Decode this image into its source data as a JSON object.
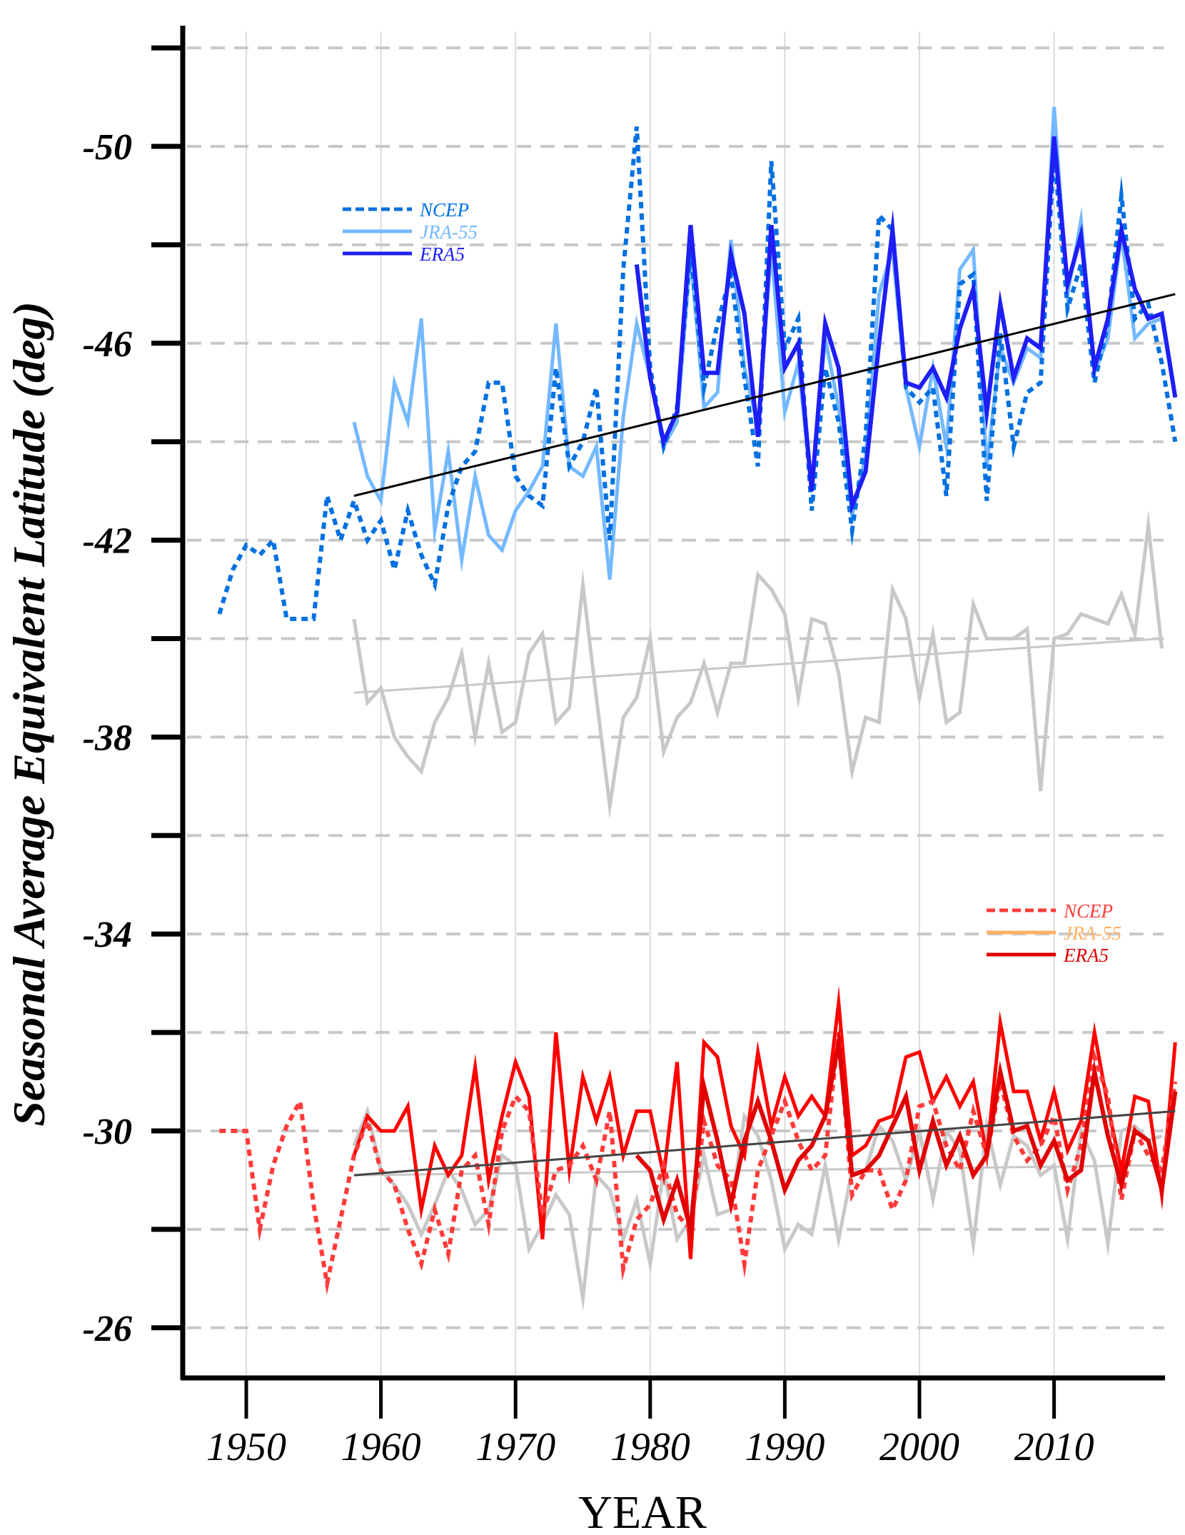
{
  "chart_data": {
    "type": "line",
    "title": "",
    "xlabel": "YEAR",
    "ylabel": "Seasonal Average Equivalent Latitude (deg)",
    "xlim": [
      1945,
      2019
    ],
    "ylim": [
      -52.4,
      -24.8
    ],
    "y_inverted": true,
    "grid": {
      "horizontal": "dashed",
      "vertical": "solid-light"
    },
    "xticks": [
      1950,
      1960,
      1970,
      1980,
      1990,
      2000,
      2010
    ],
    "xtick_labels": [
      "1950",
      "1960",
      "1970",
      "1980",
      "1990",
      "2000",
      "2010"
    ],
    "yticks": [
      -52,
      -50,
      -48,
      -46,
      -44,
      -42,
      -40,
      -38,
      -36,
      -34,
      -32,
      -30,
      -28,
      -26
    ],
    "ytick_labels": [
      "",
      "-50",
      "",
      "-46",
      "",
      "-42",
      "",
      "-38",
      "",
      "-34",
      "",
      "-30",
      "",
      "-26"
    ],
    "legends": [
      {
        "placement": "upper-left",
        "entries": [
          {
            "label": "NCEP",
            "color": "#0070E0",
            "style": "dotted"
          },
          {
            "label": "JRA-55",
            "color": "#74B9FF",
            "style": "solid"
          },
          {
            "label": "ERA5",
            "color": "#1E1EF5",
            "style": "solid"
          }
        ]
      },
      {
        "placement": "lower-right",
        "entries": [
          {
            "label": "NCEP",
            "color": "#FF3B3B",
            "style": "dotted"
          },
          {
            "label": "JRA-55",
            "color": "#FFB066",
            "style": "solid"
          },
          {
            "label": "ERA5",
            "color": "#E00000",
            "style": "solid"
          }
        ]
      }
    ],
    "series": [
      {
        "name": "NCEP (upper)",
        "color": "#0070E0",
        "style": "dotted",
        "start_year": 1948,
        "values": [
          -40.5,
          -41.4,
          -41.9,
          -41.7,
          -42.0,
          -40.4,
          -40.4,
          -40.4,
          -42.9,
          -42.0,
          -42.8,
          -42.0,
          -42.4,
          -41.4,
          -42.6,
          -41.7,
          -41.1,
          -42.7,
          -43.5,
          -43.8,
          -45.2,
          -45.2,
          -43.3,
          -42.9,
          -42.7,
          -45.5,
          -43.5,
          -44.0,
          -45.1,
          -42.0,
          -47.5,
          -50.4,
          -45.5,
          -43.9,
          -44.7,
          -47.9,
          -45.1,
          -46.4,
          -47.4,
          -45.3,
          -43.5,
          -49.7,
          -45.9,
          -46.5,
          -42.6,
          -45.5,
          -44.4,
          -42.2,
          -44.1,
          -48.6,
          -48.3,
          -45.1,
          -44.8,
          -45.1,
          -42.9,
          -47.2,
          -47.4,
          -42.8,
          -46.2,
          -43.9,
          -45.0,
          -45.2,
          -49.9,
          -46.7,
          -47.6,
          -45.2,
          -46.4,
          -49.0,
          -46.5,
          -46.8,
          -45.6,
          -44.0
        ]
      },
      {
        "name": "JRA-55 (upper)",
        "color": "#74B9FF",
        "style": "solid",
        "start_year": 1958,
        "values": [
          -44.4,
          -43.3,
          -42.8,
          -45.2,
          -44.4,
          -46.5,
          -42.2,
          -43.8,
          -41.6,
          -43.3,
          -42.1,
          -41.8,
          -42.6,
          -43.0,
          -43.5,
          -46.4,
          -43.5,
          -43.3,
          -43.9,
          -41.2,
          -44.5,
          -46.4,
          -45.3,
          -43.9,
          -44.4,
          -47.8,
          -44.7,
          -45.0,
          -48.1,
          -45.5,
          -44.3,
          -47.9,
          -44.6,
          -45.6,
          -43.0,
          -46.1,
          -44.7,
          -42.5,
          -43.7,
          -47.0,
          -47.9,
          -45.1,
          -43.9,
          -45.5,
          -43.9,
          -47.5,
          -47.9,
          -43.5,
          -45.9,
          -45.2,
          -45.9,
          -45.7,
          -50.8,
          -47.0,
          -48.5,
          -45.4,
          -46.1,
          -48.2,
          -46.1,
          -46.4,
          -46.5,
          -44.9
        ]
      },
      {
        "name": "ERA5 (upper)",
        "color": "#1E1EF5",
        "style": "solid",
        "start_year": 1979,
        "values": [
          -47.6,
          -45.3,
          -44.0,
          -44.6,
          -48.4,
          -45.4,
          -45.4,
          -47.8,
          -46.6,
          -44.1,
          -48.4,
          -45.5,
          -46.0,
          -43.0,
          -46.4,
          -45.5,
          -42.7,
          -43.4,
          -46.0,
          -48.3,
          -45.2,
          -45.1,
          -45.5,
          -44.9,
          -46.3,
          -47.1,
          -44.6,
          -46.8,
          -45.3,
          -46.1,
          -45.9,
          -50.2,
          -47.2,
          -48.2,
          -45.5,
          -46.5,
          -48.3,
          -47.1,
          -46.5,
          -46.6,
          -44.9
        ]
      },
      {
        "name": "Upper trend",
        "color": "#000000",
        "style": "trend",
        "x": [
          1958,
          2019
        ],
        "values": [
          -42.9,
          -47.0
        ]
      },
      {
        "name": "Middle gray series",
        "color": "#C8C8C8",
        "style": "solid",
        "start_year": 1958,
        "values": [
          -40.4,
          -38.7,
          -39.0,
          -38.0,
          -37.6,
          -37.3,
          -38.3,
          -38.8,
          -39.7,
          -38.0,
          -39.5,
          -38.1,
          -38.3,
          -39.7,
          -40.1,
          -38.3,
          -38.6,
          -41.1,
          -38.8,
          -36.6,
          -38.4,
          -38.8,
          -40.0,
          -37.7,
          -38.4,
          -38.7,
          -39.5,
          -38.5,
          -39.5,
          -39.5,
          -41.3,
          -41.0,
          -40.5,
          -38.8,
          -40.4,
          -40.3,
          -39.3,
          -37.3,
          -38.4,
          -38.3,
          -41.0,
          -40.4,
          -38.8,
          -40.1,
          -38.3,
          -38.5,
          -40.7,
          -40.0,
          -40.0,
          -40.0,
          -40.2,
          -36.9,
          -40.0,
          -40.1,
          -40.5,
          -40.4,
          -40.3,
          -40.9,
          -40.1,
          -42.3,
          -39.8
        ]
      },
      {
        "name": "Middle gray trend",
        "color": "#C8C8C8",
        "style": "trend",
        "x": [
          1958,
          2018
        ],
        "values": [
          -38.9,
          -40.0
        ]
      },
      {
        "name": "NCEP (lower)",
        "color": "#FF3B3B",
        "style": "dotted",
        "start_year": 1948,
        "values": [
          -30.0,
          -30.0,
          -30.0,
          -28.0,
          -29.3,
          -30.1,
          -30.6,
          -28.5,
          -26.9,
          -28.2,
          -29.5,
          -30.2,
          -29.2,
          -28.9,
          -28.0,
          -27.3,
          -28.4,
          -27.5,
          -29.2,
          -29.5,
          -28.1,
          -30.0,
          -30.7,
          -30.4,
          -28.3,
          -29.2,
          -29.3,
          -29.7,
          -29.0,
          -30.4,
          -27.2,
          -28.2,
          -28.5,
          -29.3,
          -28.3,
          -28.0,
          -30.2,
          -29.3,
          -29.0,
          -27.3,
          -29.2,
          -29.9,
          -30.6,
          -29.8,
          -29.2,
          -29.5,
          -32.0,
          -28.7,
          -29.2,
          -29.2,
          -28.4,
          -29.0,
          -30.5,
          -30.6,
          -29.7,
          -29.2,
          -30.4,
          -29.5,
          -31.0,
          -29.9,
          -29.4,
          -29.7,
          -30.3,
          -28.8,
          -29.7,
          -31.5,
          -30.7,
          -28.6,
          -30.0,
          -29.5,
          -29.2,
          -31.0
        ]
      },
      {
        "name": "JRA-55 (lower)",
        "color": "#FF0000",
        "style": "solid",
        "start_year": 1958,
        "values": [
          -29.5,
          -30.3,
          -30.0,
          -30.0,
          -30.5,
          -28.4,
          -29.7,
          -29.1,
          -29.5,
          -31.3,
          -29.0,
          -30.3,
          -31.4,
          -30.7,
          -27.8,
          -32.0,
          -29.2,
          -31.1,
          -30.2,
          -31.1,
          -29.5,
          -30.4,
          -30.4,
          -29.1,
          -31.4,
          -27.4,
          -31.8,
          -31.5,
          -30.1,
          -29.5,
          -31.6,
          -30.1,
          -31.1,
          -30.3,
          -30.7,
          -30.3,
          -32.6,
          -29.5,
          -29.7,
          -30.2,
          -30.3,
          -31.5,
          -31.6,
          -30.6,
          -31.1,
          -30.5,
          -31.0,
          -29.5,
          -32.2,
          -30.8,
          -30.8,
          -29.8,
          -30.8,
          -29.6,
          -30.2,
          -32.0,
          -30.5,
          -29.2,
          -30.7,
          -30.6,
          -28.7,
          -31.8
        ]
      },
      {
        "name": "ERA5 (lower)",
        "color": "#E00000",
        "style": "solid",
        "start_year": 1979,
        "values": [
          -29.5,
          -29.2,
          -28.2,
          -29.0,
          -28.0,
          -30.9,
          -29.8,
          -28.5,
          -29.8,
          -30.6,
          -29.8,
          -28.8,
          -29.4,
          -29.7,
          -30.3,
          -31.8,
          -29.1,
          -29.2,
          -29.5,
          -30.1,
          -30.7,
          -29.2,
          -30.2,
          -29.3,
          -29.9,
          -29.1,
          -29.5,
          -31.2,
          -30.0,
          -30.1,
          -29.3,
          -29.8,
          -29.0,
          -29.2,
          -31.2,
          -29.9,
          -28.9,
          -30.0,
          -29.8,
          -28.8,
          -30.8
        ]
      },
      {
        "name": "Lower trend",
        "color": "#444444",
        "style": "trend",
        "x": [
          1958,
          2019
        ],
        "values": [
          -29.1,
          -30.4
        ]
      },
      {
        "name": "Lower gray series",
        "color": "#C8C8C8",
        "style": "solid",
        "start_year": 1958,
        "values": [
          -29.7,
          -30.4,
          -29.2,
          -28.9,
          -28.5,
          -27.9,
          -28.5,
          -29.2,
          -28.8,
          -28.1,
          -28.4,
          -29.5,
          -29.3,
          -27.6,
          -28.1,
          -28.7,
          -28.3,
          -26.6,
          -29.1,
          -28.8,
          -27.8,
          -28.6,
          -27.3,
          -29.2,
          -27.8,
          -28.2,
          -29.5,
          -28.3,
          -28.4,
          -30.3,
          -29.9,
          -29.0,
          -27.6,
          -28.1,
          -27.9,
          -29.3,
          -27.8,
          -29.2,
          -29.2,
          -30.1,
          -29.8,
          -29.0,
          -30.0,
          -28.6,
          -30.0,
          -29.6,
          -27.7,
          -30.1,
          -28.9,
          -29.9,
          -29.7,
          -29.1,
          -29.3,
          -27.8,
          -30.0,
          -29.4,
          -27.7,
          -30.0,
          -30.1,
          -29.8,
          -29.9
        ]
      },
      {
        "name": "Lower gray trend",
        "color": "#C8C8C8",
        "style": "trend",
        "x": [
          1958,
          2018
        ],
        "values": [
          -29.1,
          -29.3
        ]
      }
    ]
  }
}
